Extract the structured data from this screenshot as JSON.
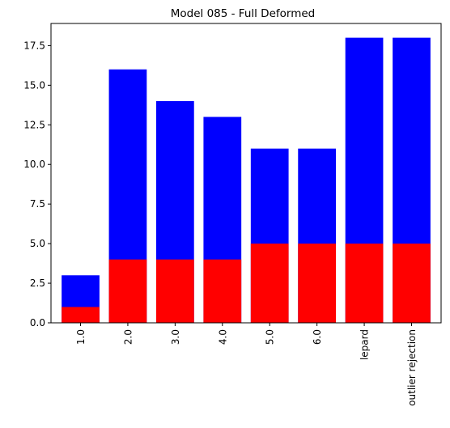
{
  "chart_data": {
    "type": "bar",
    "title": "Model 085 - Full Deformed",
    "xlabel": "",
    "ylabel": "",
    "categories": [
      "1.0",
      "2.0",
      "3.0",
      "4.0",
      "5.0",
      "6.0",
      "lepard",
      "outlier rejection"
    ],
    "series": [
      {
        "values": [
          3,
          16,
          14,
          13,
          11,
          11,
          18,
          18
        ],
        "color": "#0000ff"
      },
      {
        "values": [
          1,
          4,
          4,
          4,
          5,
          5,
          5,
          5
        ],
        "color": "#ff0000"
      }
    ],
    "ylim": [
      0,
      18.9
    ],
    "yticks": [
      0.0,
      2.5,
      5.0,
      7.5,
      10.0,
      12.5,
      15.0,
      17.5
    ],
    "ytick_labels": [
      "0.0",
      "2.5",
      "5.0",
      "7.5",
      "10.0",
      "12.5",
      "15.0",
      "17.5"
    ],
    "grid": false,
    "legend": "none"
  }
}
